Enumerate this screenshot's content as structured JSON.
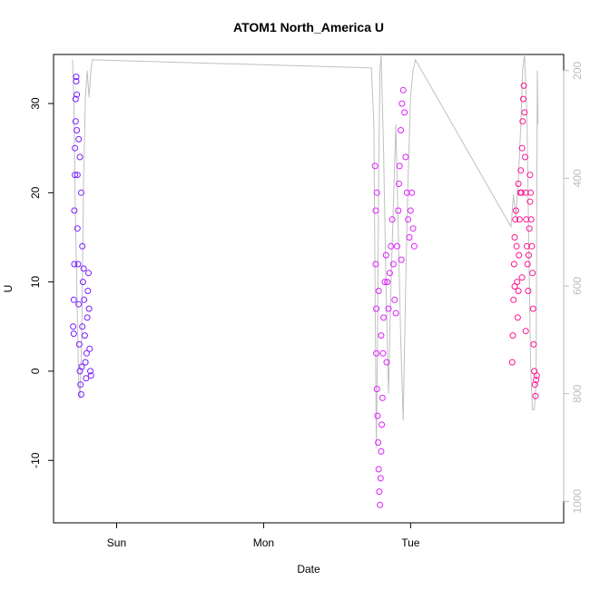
{
  "chart_data": {
    "type": "scatter",
    "title": "ATOM1 North_America U",
    "xlabel": "Date",
    "ylabel": "U",
    "x_ticks": [
      "Sun",
      "Mon",
      "Tue"
    ],
    "x_tick_hours": [
      24,
      48,
      72
    ],
    "xlim_hours": [
      13.7,
      97.0
    ],
    "ylim": [
      -17,
      35.5
    ],
    "y_ticks": [
      -10,
      0,
      10,
      20,
      30
    ],
    "y2lim": [
      1040,
      170
    ],
    "y2_ticks": [
      200,
      400,
      600,
      800,
      1000
    ],
    "marker": "open circle",
    "grid": false,
    "legend": "none",
    "colors": {
      "series_sun": "#7a1fff",
      "series_mon": "#e01fff",
      "series_tue": "#ff1493",
      "pressure_line": "#c0c0c0",
      "right_axis": "#bdbdbd"
    },
    "series": [
      {
        "color_key": "series_sun",
        "points": [
          [
            16.9,
            5.0
          ],
          [
            17.0,
            4.2
          ],
          [
            17.0,
            8.0
          ],
          [
            17.1,
            12.0
          ],
          [
            17.1,
            18.0
          ],
          [
            17.2,
            22.0
          ],
          [
            17.2,
            25.0
          ],
          [
            17.3,
            28.0
          ],
          [
            17.3,
            30.5
          ],
          [
            17.4,
            32.5
          ],
          [
            17.4,
            33.0
          ],
          [
            17.5,
            31.0
          ],
          [
            17.5,
            27.0
          ],
          [
            17.6,
            22.0
          ],
          [
            17.6,
            16.0
          ],
          [
            17.7,
            12.0
          ],
          [
            17.8,
            7.5
          ],
          [
            17.9,
            3.0
          ],
          [
            18.0,
            0.0
          ],
          [
            18.1,
            -1.5
          ],
          [
            18.2,
            -2.6
          ],
          [
            18.3,
            0.5
          ],
          [
            18.4,
            5.0
          ],
          [
            18.5,
            10.0
          ],
          [
            18.6,
            11.5
          ],
          [
            18.7,
            8.0
          ],
          [
            18.8,
            4.0
          ],
          [
            18.9,
            1.0
          ],
          [
            19.0,
            -0.8
          ],
          [
            19.1,
            2.0
          ],
          [
            19.2,
            6.0
          ],
          [
            19.3,
            9.0
          ],
          [
            19.4,
            11.0
          ],
          [
            19.5,
            7.0
          ],
          [
            19.6,
            2.5
          ],
          [
            19.7,
            0.0
          ],
          [
            19.8,
            -0.5
          ],
          [
            18.2,
            20.0
          ],
          [
            18.0,
            24.0
          ],
          [
            17.8,
            26.0
          ],
          [
            18.4,
            14.0
          ]
        ]
      },
      {
        "color_key": "series_mon",
        "points": [
          [
            66.2,
            23.0
          ],
          [
            66.3,
            18.0
          ],
          [
            66.3,
            12.0
          ],
          [
            66.4,
            7.0
          ],
          [
            66.4,
            2.0
          ],
          [
            66.5,
            -2.0
          ],
          [
            66.6,
            -5.0
          ],
          [
            66.7,
            -8.0
          ],
          [
            66.8,
            -11.0
          ],
          [
            66.9,
            -13.5
          ],
          [
            67.0,
            -15.0
          ],
          [
            67.1,
            -12.0
          ],
          [
            67.2,
            -9.0
          ],
          [
            67.3,
            -6.0
          ],
          [
            67.4,
            -3.0
          ],
          [
            67.5,
            2.0
          ],
          [
            67.6,
            6.0
          ],
          [
            67.8,
            10.0
          ],
          [
            68.0,
            13.0
          ],
          [
            68.2,
            10.0
          ],
          [
            68.4,
            7.0
          ],
          [
            68.6,
            11.0
          ],
          [
            68.8,
            14.0
          ],
          [
            69.0,
            17.0
          ],
          [
            69.2,
            12.0
          ],
          [
            69.4,
            8.0
          ],
          [
            69.6,
            6.5
          ],
          [
            69.8,
            14.0
          ],
          [
            70.0,
            18.0
          ],
          [
            70.2,
            23.0
          ],
          [
            70.4,
            27.0
          ],
          [
            70.6,
            30.0
          ],
          [
            70.8,
            31.5
          ],
          [
            71.0,
            29.0
          ],
          [
            71.2,
            24.0
          ],
          [
            71.4,
            20.0
          ],
          [
            71.6,
            17.0
          ],
          [
            71.8,
            15.0
          ],
          [
            72.0,
            18.0
          ],
          [
            72.2,
            20.0
          ],
          [
            72.4,
            16.0
          ],
          [
            72.6,
            14.0
          ],
          [
            66.5,
            20.0
          ],
          [
            66.8,
            9.0
          ],
          [
            67.2,
            4.0
          ],
          [
            68.1,
            1.0
          ],
          [
            70.1,
            21.0
          ],
          [
            70.5,
            12.5
          ]
        ]
      },
      {
        "color_key": "series_tue",
        "points": [
          [
            88.6,
            1.0
          ],
          [
            88.7,
            4.0
          ],
          [
            88.8,
            8.0
          ],
          [
            88.9,
            12.0
          ],
          [
            89.0,
            15.0
          ],
          [
            89.1,
            17.0
          ],
          [
            89.2,
            18.0
          ],
          [
            89.3,
            14.0
          ],
          [
            89.4,
            10.0
          ],
          [
            89.5,
            6.0
          ],
          [
            89.6,
            9.0
          ],
          [
            89.7,
            13.0
          ],
          [
            89.8,
            17.0
          ],
          [
            89.9,
            20.0
          ],
          [
            90.0,
            22.5
          ],
          [
            90.1,
            20.0
          ],
          [
            90.2,
            25.0
          ],
          [
            90.3,
            28.0
          ],
          [
            90.4,
            30.5
          ],
          [
            90.5,
            32.0
          ],
          [
            90.6,
            29.0
          ],
          [
            90.7,
            24.0
          ],
          [
            90.8,
            20.0
          ],
          [
            90.9,
            17.0
          ],
          [
            91.0,
            14.0
          ],
          [
            91.1,
            12.0
          ],
          [
            91.2,
            9.0
          ],
          [
            91.3,
            13.0
          ],
          [
            91.4,
            16.0
          ],
          [
            91.5,
            19.0
          ],
          [
            91.6,
            20.0
          ],
          [
            91.7,
            17.0
          ],
          [
            91.8,
            14.0
          ],
          [
            91.9,
            11.0
          ],
          [
            92.0,
            7.0
          ],
          [
            92.1,
            3.0
          ],
          [
            92.2,
            0.0
          ],
          [
            92.3,
            -1.5
          ],
          [
            92.4,
            -2.8
          ],
          [
            92.5,
            -1.0
          ],
          [
            92.6,
            -0.5
          ],
          [
            89.0,
            9.5
          ],
          [
            89.6,
            21.0
          ],
          [
            90.2,
            10.5
          ],
          [
            91.5,
            22.0
          ],
          [
            90.8,
            4.5
          ]
        ]
      }
    ],
    "pressure_line": [
      [
        16.8,
        180
      ],
      [
        17.0,
        250
      ],
      [
        17.2,
        420
      ],
      [
        17.5,
        600
      ],
      [
        17.8,
        780
      ],
      [
        18.0,
        810
      ],
      [
        18.3,
        700
      ],
      [
        18.6,
        400
      ],
      [
        18.9,
        250
      ],
      [
        19.2,
        200
      ],
      [
        19.5,
        250
      ],
      [
        19.8,
        200
      ],
      [
        20.0,
        180
      ],
      [
        65.6,
        195
      ],
      [
        66.0,
        300
      ],
      [
        66.2,
        600
      ],
      [
        66.4,
        900
      ],
      [
        66.6,
        700
      ],
      [
        66.8,
        400
      ],
      [
        67.0,
        200
      ],
      [
        67.2,
        170
      ],
      [
        67.6,
        350
      ],
      [
        68.0,
        600
      ],
      [
        68.4,
        800
      ],
      [
        68.8,
        600
      ],
      [
        69.2,
        450
      ],
      [
        69.6,
        300
      ],
      [
        70.0,
        500
      ],
      [
        70.4,
        700
      ],
      [
        70.8,
        850
      ],
      [
        71.2,
        600
      ],
      [
        71.6,
        400
      ],
      [
        72.0,
        250
      ],
      [
        72.4,
        200
      ],
      [
        72.8,
        180
      ],
      [
        88.4,
        490
      ],
      [
        88.8,
        430
      ],
      [
        89.2,
        470
      ],
      [
        89.6,
        400
      ],
      [
        90.0,
        300
      ],
      [
        90.3,
        200
      ],
      [
        90.6,
        170
      ],
      [
        91.0,
        280
      ],
      [
        91.3,
        520
      ],
      [
        91.6,
        750
      ],
      [
        91.9,
        830
      ],
      [
        92.2,
        830
      ],
      [
        92.5,
        780
      ],
      [
        92.7,
        200
      ],
      [
        92.8,
        300
      ]
    ]
  }
}
